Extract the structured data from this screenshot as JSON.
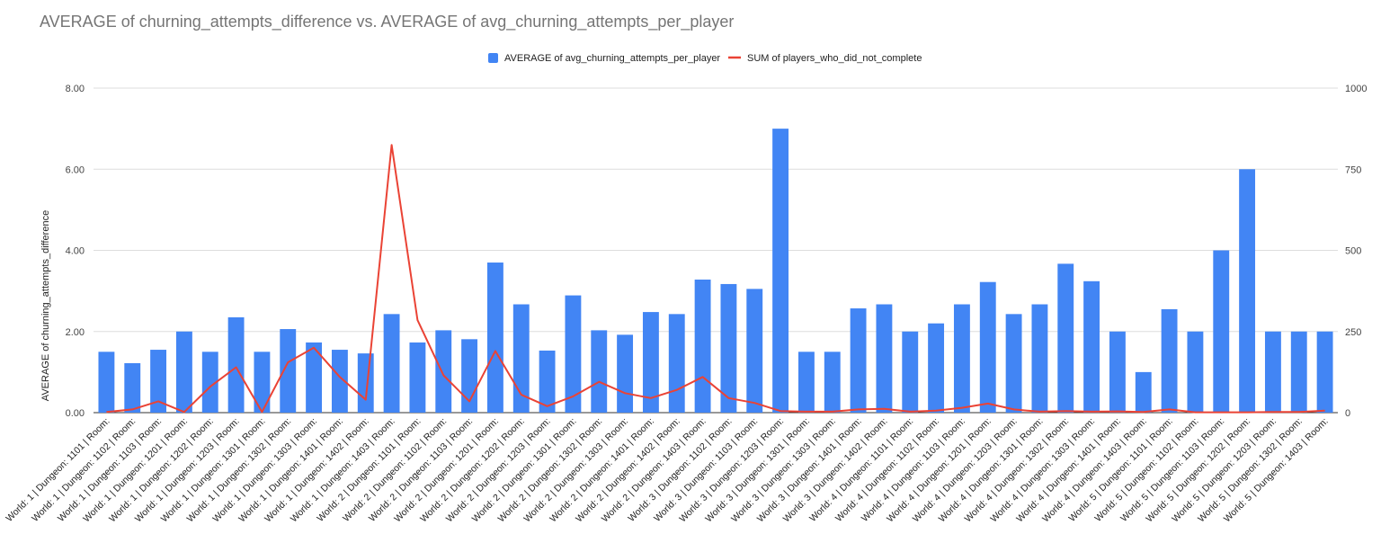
{
  "chart_data": {
    "type": "bar",
    "title": "AVERAGE of churning_attempts_difference vs. AVERAGE of avg_churning_attempts_per_player",
    "ylabel": "AVERAGE of churning_attempts_difference",
    "y2label": "",
    "ylim": [
      0,
      8
    ],
    "y2lim": [
      0,
      1000
    ],
    "yticks": [
      "0.00",
      "2.00",
      "4.00",
      "6.00",
      "8.00"
    ],
    "y2ticks": [
      "0",
      "250",
      "500",
      "750",
      "1000"
    ],
    "legend_position": "top",
    "grid": true,
    "categories": [
      "World: 1 | Dungeon: 1101 | Room:",
      "World: 1 | Dungeon: 1102 | Room:",
      "World: 1 | Dungeon: 1103 | Room:",
      "World: 1 | Dungeon: 1201 | Room:",
      "World: 1 | Dungeon: 1202 | Room:",
      "World: 1 | Dungeon: 1203 | Room:",
      "World: 1 | Dungeon: 1301 | Room:",
      "World: 1 | Dungeon: 1302 | Room:",
      "World: 1 | Dungeon: 1303 | Room:",
      "World: 1 | Dungeon: 1401 | Room:",
      "World: 1 | Dungeon: 1402 | Room:",
      "World: 1 | Dungeon: 1403 | Room:",
      "World: 2 | Dungeon: 1101 | Room:",
      "World: 2 | Dungeon: 1102 | Room:",
      "World: 2 | Dungeon: 1103 | Room:",
      "World: 2 | Dungeon: 1201 | Room:",
      "World: 2 | Dungeon: 1202 | Room:",
      "World: 2 | Dungeon: 1203 | Room:",
      "World: 2 | Dungeon: 1301 | Room:",
      "World: 2 | Dungeon: 1302 | Room:",
      "World: 2 | Dungeon: 1303 | Room:",
      "World: 2 | Dungeon: 1401 | Room:",
      "World: 2 | Dungeon: 1402 | Room:",
      "World: 2 | Dungeon: 1403 | Room:",
      "World: 3 | Dungeon: 1102 | Room:",
      "World: 3 | Dungeon: 1103 | Room:",
      "World: 3 | Dungeon: 1203 | Room:",
      "World: 3 | Dungeon: 1301 | Room:",
      "World: 3 | Dungeon: 1303 | Room:",
      "World: 3 | Dungeon: 1401 | Room:",
      "World: 3 | Dungeon: 1402 | Room:",
      "World: 4 | Dungeon: 1101 | Room:",
      "World: 4 | Dungeon: 1102 | Room:",
      "World: 4 | Dungeon: 1103 | Room:",
      "World: 4 | Dungeon: 1201 | Room:",
      "World: 4 | Dungeon: 1203 | Room:",
      "World: 4 | Dungeon: 1301 | Room:",
      "World: 4 | Dungeon: 1302 | Room:",
      "World: 4 | Dungeon: 1303 | Room:",
      "World: 4 | Dungeon: 1401 | Room:",
      "World: 4 | Dungeon: 1403 | Room:",
      "World: 5 | Dungeon: 1101 | Room:",
      "World: 5 | Dungeon: 1102 | Room:",
      "World: 5 | Dungeon: 1103 | Room:",
      "World: 5 | Dungeon: 1202 | Room:",
      "World: 5 | Dungeon: 1203 | Room:",
      "World: 5 | Dungeon: 1302 | Room:",
      "World: 5 | Dungeon: 1403 | Room:"
    ],
    "series": [
      {
        "name": "AVERAGE of avg_churning_attempts_per_player",
        "type": "bar",
        "axis": "left",
        "color": "#4285f4",
        "values": [
          1.5,
          1.22,
          1.55,
          2.0,
          1.5,
          2.35,
          1.5,
          2.06,
          1.73,
          1.55,
          1.46,
          2.43,
          1.73,
          2.03,
          1.81,
          3.7,
          2.67,
          1.53,
          2.89,
          2.03,
          1.92,
          2.48,
          2.43,
          3.28,
          3.17,
          3.05,
          7.0,
          1.5,
          1.5,
          2.57,
          2.67,
          2.0,
          2.2,
          2.67,
          3.22,
          2.43,
          2.67,
          3.67,
          3.24,
          2.0,
          1.0,
          2.55,
          2.0,
          4.0,
          6.0,
          2.0,
          2.0,
          2.0
        ]
      },
      {
        "name": "SUM of players_who_did_not_complete",
        "type": "line",
        "axis": "right",
        "color": "#ea4335",
        "values": [
          2,
          10,
          35,
          2,
          80,
          140,
          2,
          155,
          200,
          110,
          40,
          825,
          285,
          115,
          35,
          190,
          55,
          20,
          50,
          95,
          60,
          45,
          70,
          110,
          45,
          30,
          5,
          3,
          3,
          10,
          12,
          3,
          6,
          15,
          28,
          10,
          3,
          5,
          3,
          4,
          2,
          10,
          1,
          1,
          1,
          2,
          2,
          6
        ]
      }
    ]
  }
}
